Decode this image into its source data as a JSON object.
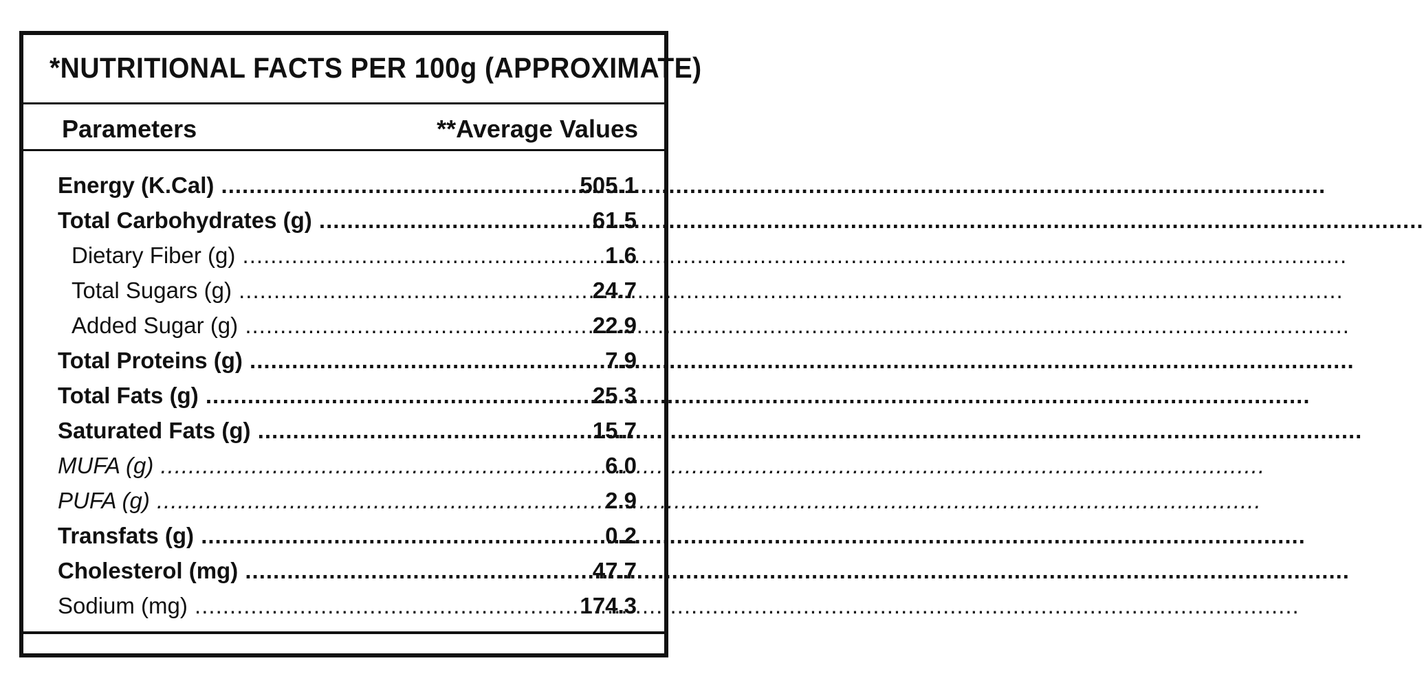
{
  "title": "*NUTRITIONAL FACTS PER 100g (APPROXIMATE)",
  "header": {
    "parameters": "Parameters",
    "average_values": "**Average Values"
  },
  "rows": [
    {
      "label": "Energy (K.Cal)",
      "value": "505.1"
    },
    {
      "label": "Total Carbohydrates (g)",
      "value": "61.5"
    },
    {
      "label": "Dietary Fiber (g)",
      "value": "1.6"
    },
    {
      "label": "Total Sugars (g)",
      "value": "24.7"
    },
    {
      "label": "Added Sugar (g)",
      "value": "22.9"
    },
    {
      "label": "Total Proteins (g)",
      "value": "7.9"
    },
    {
      "label": "Total Fats (g)",
      "value": "25.3"
    },
    {
      "label": "Saturated Fats (g)",
      "value": "15.7"
    },
    {
      "label": "MUFA (g)",
      "value": "6.0"
    },
    {
      "label": "PUFA (g)",
      "value": "2.9"
    },
    {
      "label": "Transfats (g)",
      "value": "0.2"
    },
    {
      "label": "Cholesterol (mg)",
      "value": "47.7"
    },
    {
      "label": "Sodium (mg)",
      "value": "174.3"
    }
  ]
}
